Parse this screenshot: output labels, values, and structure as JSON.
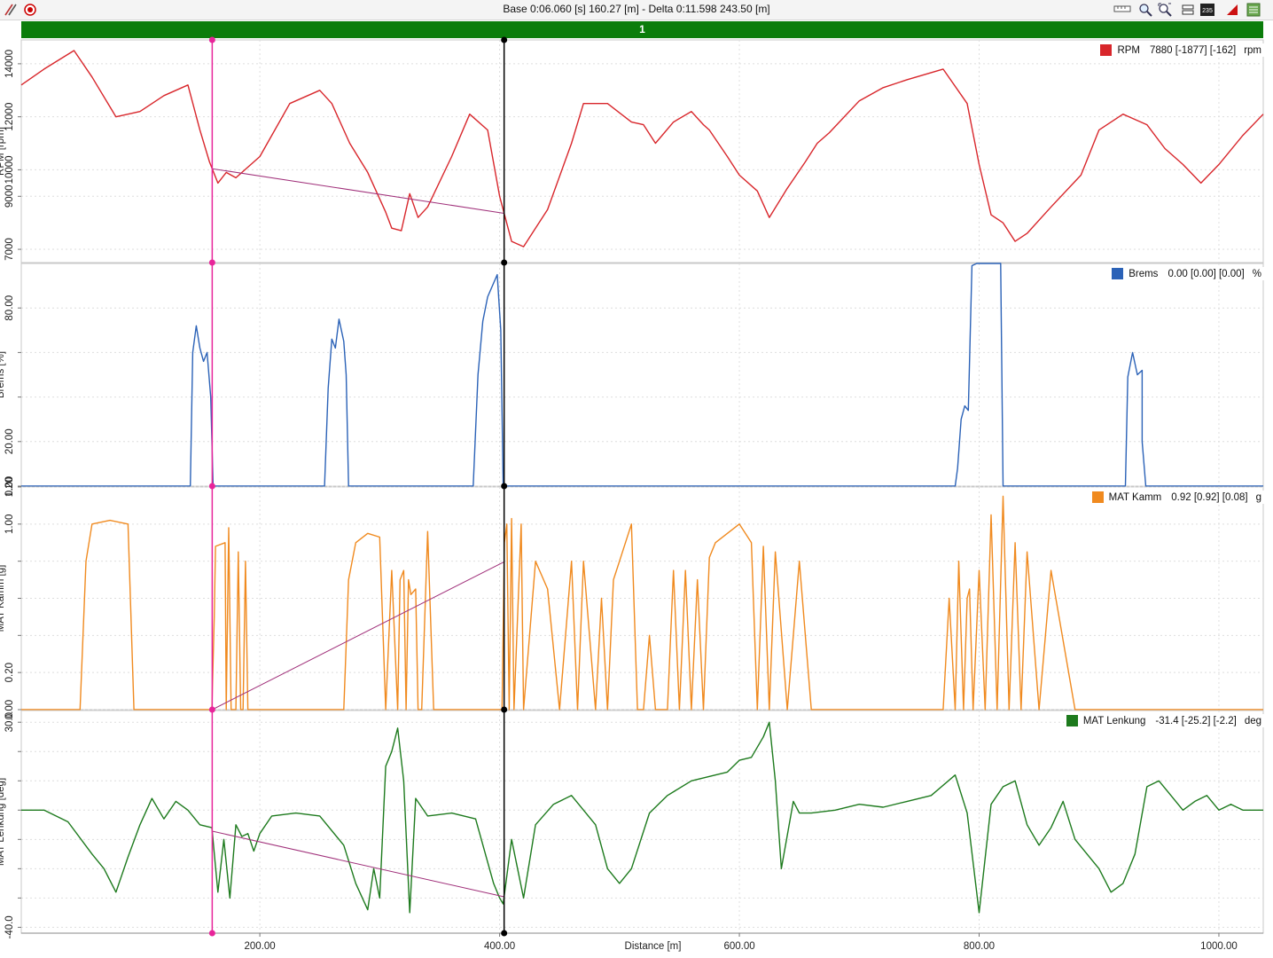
{
  "toolbar": {
    "title": "Base 0:06.060 [s] 160.27 [m] - Delta 0:11.598 243.50 [m]",
    "icons": [
      "measure-icon",
      "record-icon",
      "ruler-icon",
      "zoom-icon",
      "zoom-fit-icon",
      "overlay-icon",
      "count-icon",
      "signal-icon",
      "layers-icon"
    ],
    "count_badge": "235"
  },
  "lap_bar": {
    "label": "1",
    "color": "#0b7d0b"
  },
  "cursors": {
    "base_x": 160.27,
    "delta_x": 403.77,
    "base_color": "#e8259a",
    "delta_color": "#000000"
  },
  "chart_data": {
    "type": "line",
    "xlabel": "Distance [m]",
    "xlim": [
      1,
      1037
    ],
    "xticks": [
      200,
      400,
      600,
      800,
      1000
    ],
    "xtick_labels": [
      "200.00",
      "400.00",
      "600.00",
      "800.00",
      "1000.00"
    ],
    "grid": true,
    "panels": [
      {
        "name": "RPM",
        "ylabel": "RPM [rpm]",
        "unit": "rpm",
        "color": "#d8262b",
        "ylim": [
          6500,
          14900
        ],
        "yticks": [
          7000,
          9000,
          10000,
          12000,
          14000
        ],
        "ytick_labels": [
          "7000",
          "9000",
          "10000",
          "12000",
          "14000"
        ],
        "legend_value": "7880 [-1877] [-162]",
        "x": [
          1,
          20,
          45,
          60,
          80,
          100,
          120,
          140,
          150,
          158,
          165,
          172,
          180,
          200,
          225,
          250,
          260,
          275,
          290,
          305,
          310,
          318,
          325,
          332,
          340,
          360,
          375,
          390,
          400,
          410,
          420,
          440,
          460,
          470,
          490,
          510,
          520,
          530,
          545,
          560,
          570,
          575,
          590,
          600,
          615,
          625,
          640,
          655,
          665,
          675,
          700,
          720,
          740,
          770,
          790,
          800,
          810,
          820,
          830,
          840,
          860,
          885,
          900,
          920,
          940,
          955,
          970,
          985,
          1000,
          1020,
          1037
        ],
        "y": [
          13200,
          13800,
          14500,
          13500,
          12000,
          12200,
          12800,
          13200,
          11500,
          10300,
          9500,
          9900,
          9700,
          10500,
          12500,
          13000,
          12500,
          11000,
          9900,
          8400,
          7800,
          7700,
          9100,
          8200,
          8600,
          10500,
          12100,
          11500,
          9000,
          7300,
          7100,
          8500,
          11000,
          12500,
          12500,
          11800,
          11700,
          11000,
          11800,
          12200,
          11700,
          11500,
          10500,
          9800,
          9200,
          8200,
          9300,
          10300,
          11000,
          11400,
          12600,
          13100,
          13400,
          13800,
          12500,
          10200,
          8300,
          8000,
          7300,
          7600,
          8600,
          9800,
          11500,
          12100,
          11700,
          10800,
          10200,
          9500,
          10200,
          11300,
          12100
        ]
      },
      {
        "name": "Brems",
        "ylabel": "Brems [%]",
        "unit": "%",
        "color": "#2b62b7",
        "ylim": [
          0,
          100
        ],
        "yticks": [
          0,
          20,
          40,
          60,
          80
        ],
        "ytick_labels": [
          "0.00",
          "20.00",
          "",
          "",
          "80.00"
        ],
        "legend_value": "0.00 [0.00] [0.00]",
        "x": [
          1,
          142,
          144,
          147,
          150,
          153,
          156,
          159,
          161,
          254,
          257,
          260,
          263,
          266,
          270,
          272,
          274,
          278,
          378,
          382,
          386,
          390,
          394,
          398,
          401,
          403,
          780,
          782,
          785,
          788,
          791,
          794,
          798,
          803,
          808,
          818,
          820,
          922,
          924,
          928,
          932,
          936,
          936,
          939,
          1037
        ],
        "y": [
          0,
          0,
          60,
          72,
          62,
          56,
          60,
          40,
          0,
          0,
          44,
          66,
          62,
          75,
          65,
          50,
          0,
          0,
          0,
          50,
          74,
          85,
          90,
          95,
          70,
          0,
          0,
          8,
          30,
          36,
          34,
          99,
          100,
          100,
          100,
          100,
          0,
          0,
          49,
          60,
          50,
          52,
          20,
          0,
          0
        ]
      },
      {
        "name": "MAT Kamm",
        "ylabel": "MAT Kamm [g]",
        "unit": "g",
        "color": "#f08a1f",
        "ylim": [
          0,
          1.2
        ],
        "yticks": [
          0,
          0.2,
          0.4,
          0.6,
          0.8,
          1.0,
          1.2
        ],
        "ytick_labels": [
          "0.00",
          "0.20",
          "",
          "",
          "",
          "1.00",
          "1.20"
        ],
        "legend_value": "0.92 [0.92] [0.08]",
        "x": [
          1,
          50,
          55,
          60,
          75,
          90,
          95,
          100,
          160,
          162,
          163,
          171,
          172,
          174,
          176,
          180,
          182,
          184,
          186,
          188,
          190,
          194,
          196,
          198,
          199,
          270,
          274,
          280,
          290,
          300,
          305,
          310,
          315,
          317,
          320,
          322,
          324,
          326,
          330,
          332,
          335,
          340,
          345,
          350,
          353,
          356,
          402,
          404,
          406,
          408,
          410,
          412,
          418,
          420,
          430,
          440,
          450,
          460,
          465,
          470,
          480,
          485,
          490,
          495,
          500,
          510,
          515,
          520,
          525,
          530,
          540,
          545,
          550,
          555,
          560,
          565,
          570,
          575,
          580,
          590,
          600,
          610,
          615,
          620,
          625,
          630,
          640,
          650,
          660,
          670,
          675,
          680,
          685,
          690,
          695,
          700,
          705,
          710,
          715,
          720,
          730,
          740,
          750,
          760,
          770,
          775,
          780,
          783,
          787,
          790,
          792,
          795,
          800,
          805,
          810,
          815,
          820,
          825,
          830,
          835,
          840,
          850,
          860,
          880,
          890,
          900,
          920,
          930,
          940,
          950,
          960,
          970,
          975,
          980,
          985,
          990,
          1000,
          1037
        ],
        "y": [
          0,
          0,
          0.8,
          1.0,
          1.02,
          1.0,
          0,
          0,
          0,
          0.5,
          0.88,
          0.9,
          0,
          0.98,
          0,
          0,
          0.85,
          0,
          0,
          0.8,
          0,
          0,
          0,
          0,
          0,
          0,
          0.7,
          0.9,
          0.95,
          0.93,
          0,
          0.75,
          0,
          0.7,
          0.75,
          0,
          0.7,
          0.62,
          0.65,
          0,
          0,
          0.96,
          0,
          0,
          0,
          0,
          0,
          0.9,
          1.0,
          0,
          1.03,
          0,
          1.0,
          0,
          0.8,
          0.65,
          0,
          0.8,
          0,
          0.8,
          0,
          0.6,
          0,
          0.7,
          0.8,
          1.0,
          0,
          0,
          0.4,
          0,
          0,
          0.75,
          0,
          0.75,
          0,
          0.7,
          0,
          0.82,
          0.9,
          0.95,
          1.0,
          0.9,
          0,
          0.88,
          0,
          0.85,
          0,
          0.8,
          0,
          0,
          0,
          0,
          0,
          0,
          0,
          0,
          0,
          0,
          0,
          0,
          0,
          0,
          0,
          0,
          0,
          0.6,
          0,
          0.8,
          0,
          0.6,
          0.65,
          0,
          0.75,
          0,
          1.05,
          0,
          1.15,
          0,
          0.9,
          0,
          0.85,
          0,
          0.75,
          0,
          0,
          0,
          0,
          0,
          0,
          0,
          0,
          0,
          0,
          0,
          0,
          0,
          0,
          0
        ]
      },
      {
        "name": "MAT Lenkung",
        "ylabel": "MAT Lenkung [deg]",
        "unit": "deg",
        "color": "#1d7a1d",
        "ylim": [
          -42,
          34
        ],
        "yticks": [
          -40,
          -30,
          -20,
          -10,
          0,
          10,
          20,
          30
        ],
        "ytick_labels": [
          "-40.0",
          "",
          "",
          "",
          "",
          "",
          "",
          "30.0"
        ],
        "legend_value": "-31.4 [-25.2] [-2.2]",
        "x": [
          1,
          20,
          40,
          60,
          70,
          80,
          90,
          100,
          110,
          120,
          130,
          140,
          150,
          160,
          165,
          170,
          175,
          180,
          185,
          190,
          195,
          200,
          210,
          230,
          250,
          270,
          280,
          290,
          295,
          300,
          305,
          310,
          315,
          320,
          325,
          330,
          340,
          360,
          380,
          395,
          400,
          403,
          410,
          420,
          430,
          445,
          460,
          480,
          490,
          500,
          510,
          525,
          540,
          560,
          580,
          590,
          600,
          610,
          620,
          625,
          630,
          635,
          645,
          650,
          660,
          680,
          700,
          720,
          740,
          760,
          780,
          790,
          800,
          810,
          820,
          830,
          840,
          850,
          860,
          870,
          880,
          890,
          900,
          910,
          920,
          930,
          940,
          950,
          960,
          970,
          980,
          990,
          1000,
          1010,
          1020,
          1037
        ],
        "y": [
          0,
          0,
          -4,
          -15,
          -20,
          -28,
          -16,
          -5,
          4,
          -3,
          3,
          0,
          -5,
          -6,
          -28,
          -10,
          -30,
          -5,
          -9,
          -8,
          -14,
          -8,
          -2,
          -1,
          -2,
          -12,
          -25,
          -34,
          -20,
          -30,
          15,
          20,
          28,
          10,
          -35,
          4,
          -2,
          -1,
          -3,
          -25,
          -30,
          -32,
          -10,
          -30,
          -5,
          2,
          5,
          -5,
          -20,
          -25,
          -20,
          -1,
          5,
          10,
          12,
          13,
          17,
          18,
          25,
          30,
          10,
          -20,
          3,
          -1,
          -1,
          0,
          2,
          1,
          3,
          5,
          12,
          -1,
          -35,
          2,
          8,
          10,
          -5,
          -12,
          -6,
          3,
          -10,
          -15,
          -20,
          -28,
          -25,
          -15,
          8,
          10,
          5,
          0,
          3,
          5,
          0,
          2,
          0,
          0
        ]
      }
    ]
  }
}
